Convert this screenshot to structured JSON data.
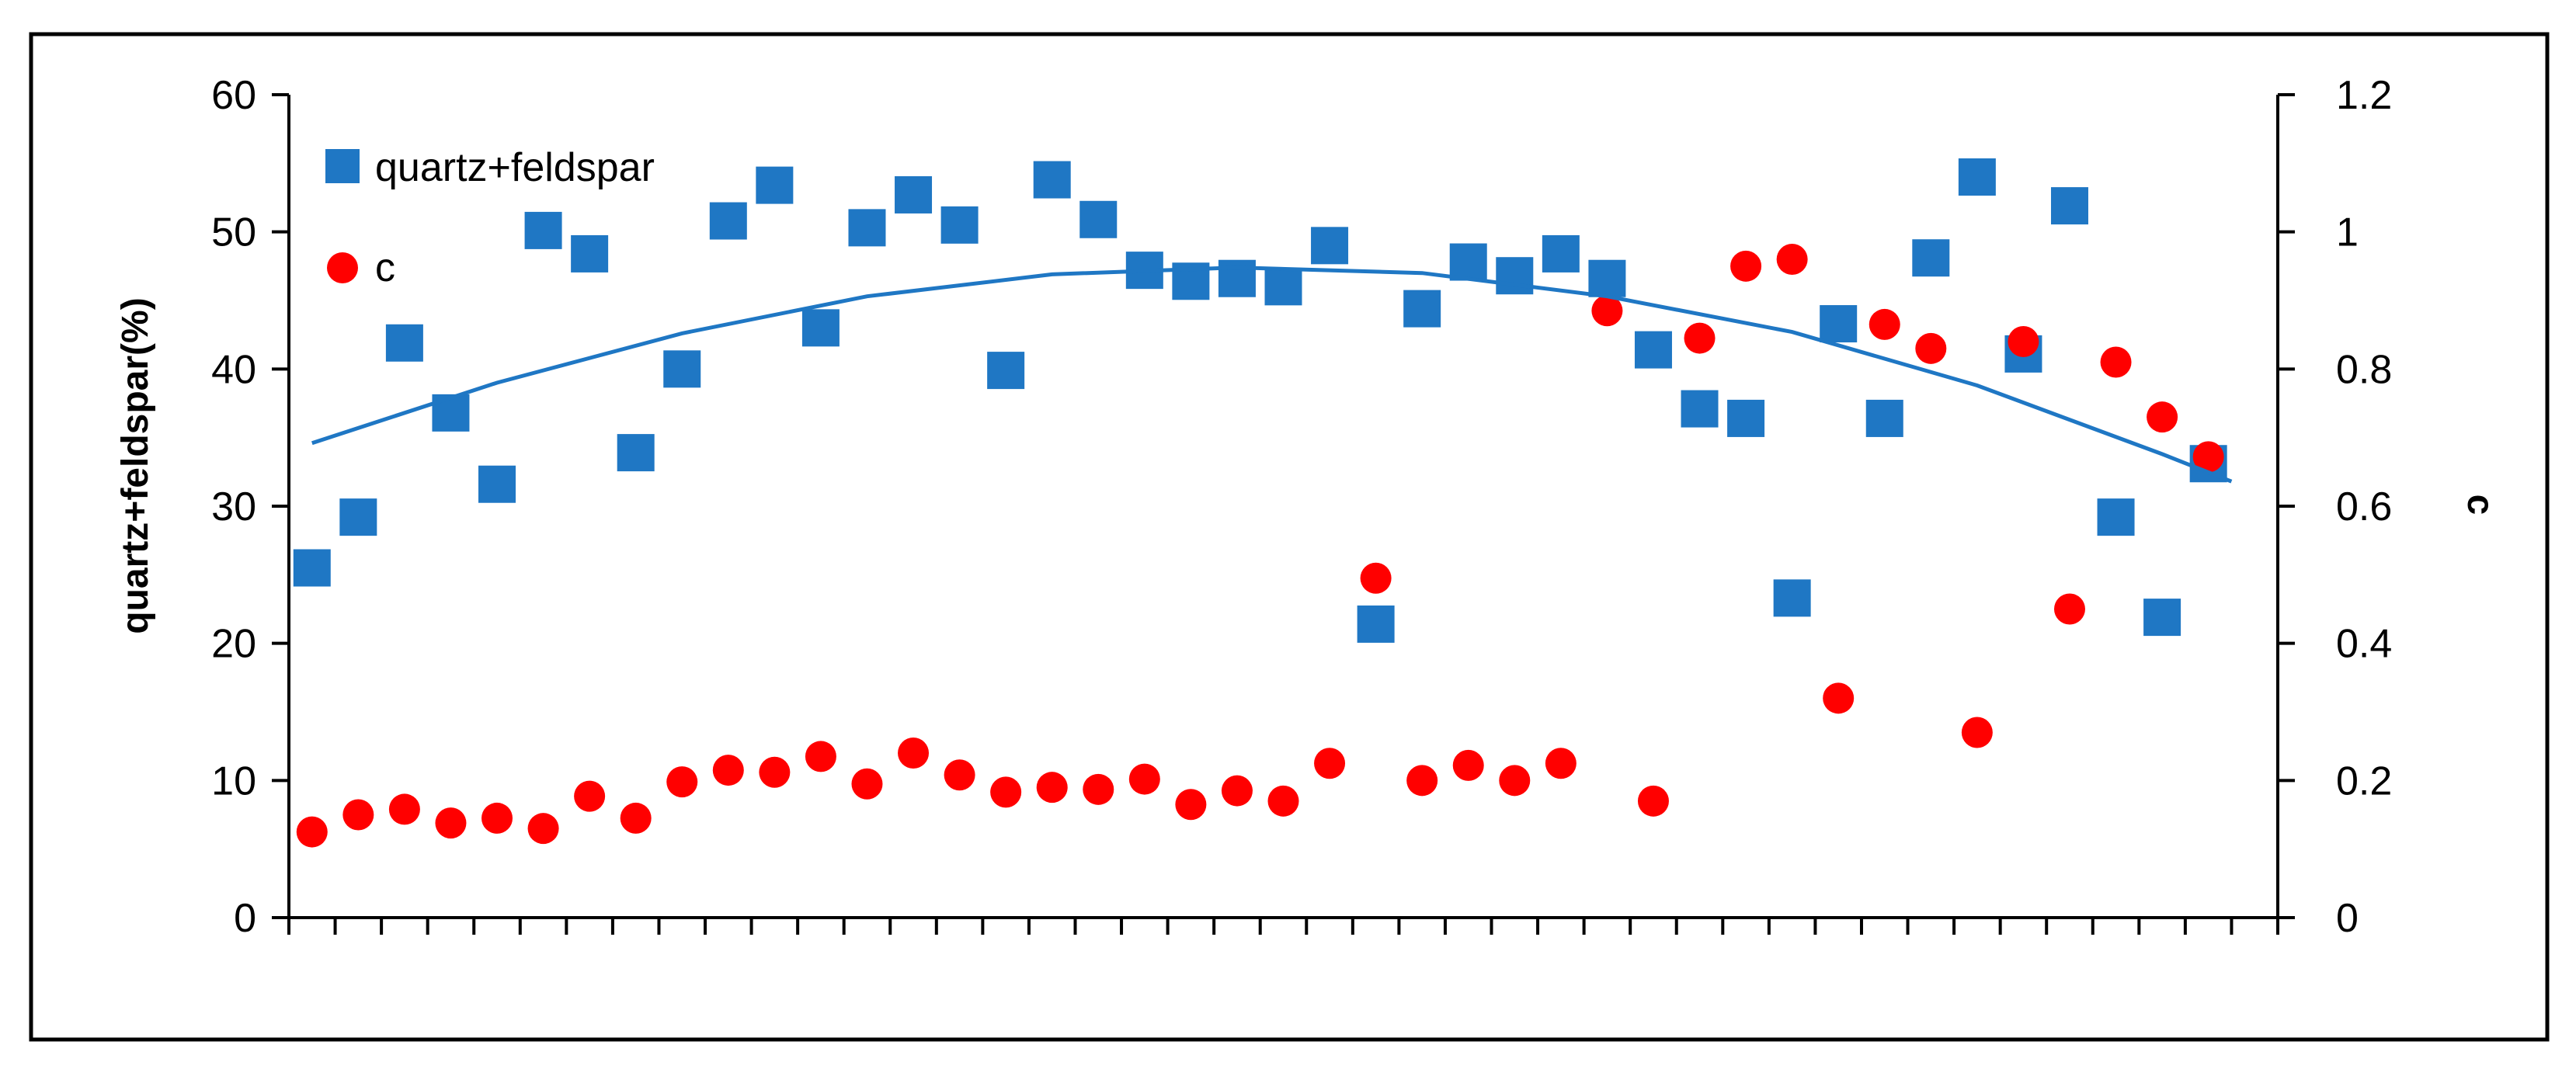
{
  "chart_data": {
    "type": "scatter",
    "title": "",
    "xlabel": "",
    "ylabel": "quartz+feldspar(%)",
    "y2label": "c",
    "ylim": [
      0,
      60
    ],
    "y2lim": [
      0,
      1.2
    ],
    "yticks": [
      "0",
      "10",
      "20",
      "30",
      "40",
      "50",
      "60"
    ],
    "y2ticks": [
      "0",
      "0.2",
      "0.4",
      "0.6",
      "0.8",
      "1",
      "1.2"
    ],
    "grid": false,
    "legend_position": "top-left",
    "x_count": 43,
    "series": [
      {
        "name": "quartz+feldspar",
        "axis": "left",
        "marker": "square",
        "color": "#1f77c4",
        "x": [
          0,
          1,
          2,
          3,
          4,
          5,
          6,
          7,
          8,
          9,
          10,
          11,
          12,
          13,
          14,
          15,
          16,
          17,
          18,
          19,
          20,
          21,
          22,
          23,
          24,
          25,
          26,
          27,
          28,
          29,
          30,
          31,
          32,
          33,
          34,
          35,
          36,
          37,
          38,
          39,
          40,
          41,
          42
        ],
        "values": [
          25.5,
          29.2,
          41.9,
          36.8,
          31.6,
          50.1,
          48.4,
          33.9,
          40.0,
          50.8,
          53.4,
          43.0,
          50.3,
          52.7,
          50.5,
          39.9,
          53.8,
          50.9,
          47.2,
          46.4,
          46.6,
          46.0,
          49.0,
          21.4,
          44.4,
          47.8,
          46.8,
          48.4,
          46.6,
          41.4,
          37.1,
          36.4,
          23.3,
          43.3,
          36.4,
          48.1,
          54.0,
          41.1,
          51.9,
          29.2,
          21.9,
          33.1,
          null
        ]
      },
      {
        "name": "c",
        "axis": "right",
        "marker": "circle",
        "color": "#ff0000",
        "x": [
          0,
          1,
          2,
          3,
          4,
          5,
          6,
          7,
          8,
          9,
          10,
          11,
          12,
          13,
          14,
          15,
          16,
          17,
          18,
          19,
          20,
          21,
          22,
          23,
          24,
          25,
          26,
          27,
          28,
          29,
          30,
          31,
          32,
          33,
          34,
          35,
          36,
          37,
          38,
          39,
          40,
          41,
          42
        ],
        "values": [
          0.125,
          0.15,
          0.158,
          0.138,
          0.145,
          0.13,
          0.177,
          0.145,
          0.198,
          0.215,
          0.212,
          0.235,
          0.195,
          0.24,
          0.208,
          0.183,
          0.19,
          0.187,
          0.202,
          0.165,
          0.185,
          0.17,
          0.225,
          0.495,
          0.2,
          0.222,
          0.2,
          0.225,
          0.885,
          0.17,
          0.845,
          0.95,
          0.96,
          0.32,
          0.865,
          0.83,
          0.27,
          0.84,
          0.45,
          0.81,
          0.73,
          0.672,
          null
        ]
      },
      {
        "name": "",
        "axis": "left",
        "kind": "trendline",
        "fit": "polynomial-2",
        "color": "#1f77c4",
        "x": [
          0,
          4,
          8,
          12,
          16,
          20,
          24,
          28,
          32,
          36,
          40,
          41.5
        ],
        "values": [
          34.6,
          39.0,
          42.6,
          45.3,
          46.9,
          47.4,
          47.0,
          45.3,
          42.7,
          38.8,
          33.8,
          31.8
        ]
      }
    ]
  }
}
